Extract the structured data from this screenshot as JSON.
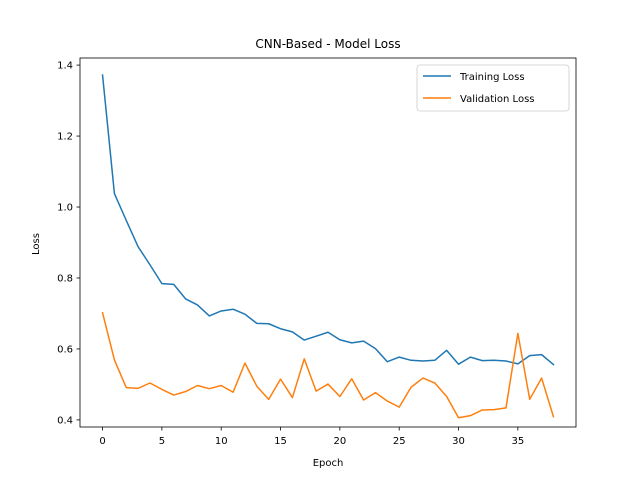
{
  "chart_data": {
    "type": "line",
    "title": "CNN-Based - Model Loss",
    "xlabel": "Epoch",
    "ylabel": "Loss",
    "xlim": [
      -1.9,
      39.9
    ],
    "ylim": [
      0.38,
      1.42
    ],
    "xticks": [
      0,
      5,
      10,
      15,
      20,
      25,
      30,
      35
    ],
    "yticks": [
      0.4,
      0.6,
      0.8,
      1.0,
      1.2,
      1.4
    ],
    "grid": false,
    "legend_position": "top-right",
    "x": [
      0,
      1,
      2,
      3,
      4,
      5,
      6,
      7,
      8,
      9,
      10,
      11,
      12,
      13,
      14,
      15,
      16,
      17,
      18,
      19,
      20,
      21,
      22,
      23,
      24,
      25,
      26,
      27,
      28,
      29,
      30,
      31,
      32,
      33,
      34,
      35,
      36,
      37,
      38
    ],
    "series": [
      {
        "name": "Training Loss",
        "color": "#1f77b4",
        "values": [
          1.372,
          1.038,
          0.962,
          0.888,
          0.837,
          0.784,
          0.782,
          0.741,
          0.724,
          0.693,
          0.707,
          0.712,
          0.698,
          0.672,
          0.671,
          0.657,
          0.648,
          0.625,
          0.636,
          0.647,
          0.626,
          0.617,
          0.622,
          0.601,
          0.564,
          0.577,
          0.568,
          0.566,
          0.568,
          0.596,
          0.557,
          0.577,
          0.567,
          0.568,
          0.566,
          0.558,
          0.581,
          0.584,
          0.556
        ]
      },
      {
        "name": "Validation Loss",
        "color": "#ff7f0e",
        "values": [
          0.702,
          0.569,
          0.491,
          0.489,
          0.504,
          0.486,
          0.47,
          0.48,
          0.497,
          0.488,
          0.497,
          0.478,
          0.56,
          0.495,
          0.458,
          0.515,
          0.463,
          0.572,
          0.481,
          0.501,
          0.466,
          0.516,
          0.456,
          0.477,
          0.453,
          0.436,
          0.492,
          0.518,
          0.504,
          0.466,
          0.406,
          0.412,
          0.428,
          0.429,
          0.434,
          0.644,
          0.458,
          0.518,
          0.409
        ]
      }
    ]
  }
}
